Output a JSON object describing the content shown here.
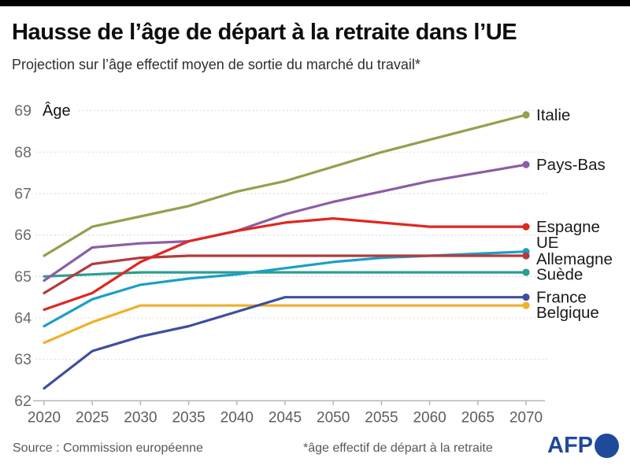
{
  "header": {
    "bar_color": "#000000",
    "title": "Hausse de l’âge de départ à la retraite dans l’UE",
    "subtitle": "Projection sur l’âge effectif moyen de sortie du marché du travail*"
  },
  "chart_data": {
    "type": "line",
    "title": "Projection sur l’âge effectif moyen de sortie du marché du travail",
    "ylabel": "Âge",
    "xlabel": "",
    "x": [
      2020,
      2025,
      2030,
      2035,
      2040,
      2045,
      2050,
      2055,
      2060,
      2065,
      2070
    ],
    "x_tick_labels": [
      "2020",
      "2025",
      "2030",
      "2035",
      "2040",
      "2045",
      "2050",
      "2055",
      "2060",
      "2065",
      "2070"
    ],
    "y_ticks": [
      62,
      63,
      64,
      65,
      66,
      67,
      68,
      69
    ],
    "ylim": [
      62,
      69
    ],
    "grid": true,
    "legend_position": "right-of-line-ends",
    "series": [
      {
        "name": "Italie",
        "color": "#93a04e",
        "values": [
          65.5,
          66.2,
          66.45,
          66.7,
          67.05,
          67.3,
          67.65,
          68.0,
          68.3,
          68.6,
          68.9
        ]
      },
      {
        "name": "Pays-Bas",
        "color": "#8c5da6",
        "values": [
          64.9,
          65.7,
          65.8,
          65.85,
          66.1,
          66.5,
          66.8,
          67.05,
          67.3,
          67.5,
          67.7
        ]
      },
      {
        "name": "Espagne",
        "color": "#df2722",
        "values": [
          64.2,
          64.6,
          65.35,
          65.85,
          66.1,
          66.3,
          66.4,
          66.3,
          66.2,
          66.2,
          66.2
        ]
      },
      {
        "name": "UE",
        "color": "#1b9fc6",
        "values": [
          63.8,
          64.45,
          64.8,
          64.95,
          65.05,
          65.2,
          65.35,
          65.45,
          65.5,
          65.55,
          65.6
        ]
      },
      {
        "name": "Allemagne",
        "color": "#b23b3f",
        "values": [
          64.6,
          65.3,
          65.45,
          65.5,
          65.5,
          65.5,
          65.5,
          65.5,
          65.5,
          65.5,
          65.5
        ]
      },
      {
        "name": "Suède",
        "color": "#2d9e90",
        "values": [
          65.0,
          65.05,
          65.1,
          65.1,
          65.1,
          65.1,
          65.1,
          65.1,
          65.1,
          65.1,
          65.1
        ]
      },
      {
        "name": "France",
        "color": "#3f4f9d",
        "values": [
          62.3,
          63.2,
          63.55,
          63.8,
          64.15,
          64.5,
          64.5,
          64.5,
          64.5,
          64.5,
          64.5
        ]
      },
      {
        "name": "Belgique",
        "color": "#f0b02c",
        "values": [
          63.4,
          63.9,
          64.3,
          64.3,
          64.3,
          64.3,
          64.3,
          64.3,
          64.3,
          64.3,
          64.3
        ]
      }
    ]
  },
  "footer": {
    "source": "Source : Commission européenne",
    "note": "*âge effectif de départ à la retraite",
    "logo_text": "AFP",
    "logo_color": "#1e4a9b"
  }
}
